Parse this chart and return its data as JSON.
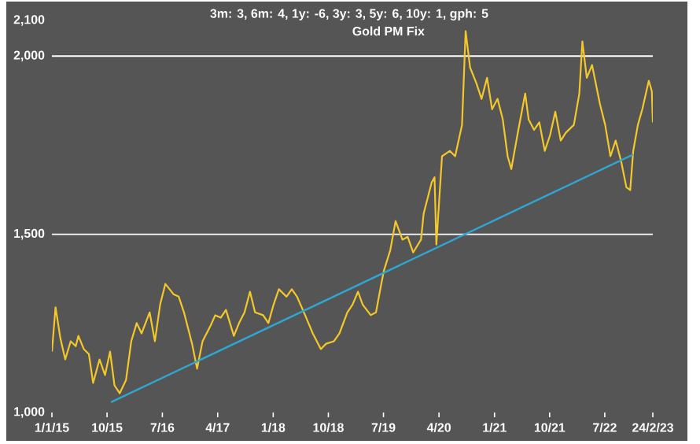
{
  "chart_data": {
    "type": "line",
    "title": "Gold PM Fix",
    "annotations": [
      "3m: 3,   6m: 4,   1y: -6,   3y: 3,   5y: 6,   10y: 1,   gph: 5"
    ],
    "series": [
      {
        "color": "#f5c82a",
        "x": [
          "2015-01-01",
          "2015-01-19",
          "2015-02-12",
          "2015-03-08",
          "2015-04-04",
          "2015-04-29",
          "2015-05-12",
          "2015-06-08",
          "2015-07-03",
          "2015-07-24",
          "2015-08-25",
          "2015-09-21",
          "2015-10-16",
          "2015-11-07",
          "2015-12-03",
          "2016-01-03",
          "2016-01-29",
          "2016-02-25",
          "2016-03-20",
          "2016-04-29",
          "2016-05-25",
          "2016-06-20",
          "2016-07-16",
          "2016-08-25",
          "2016-09-20",
          "2016-10-16",
          "2016-11-25",
          "2016-12-20",
          "2017-01-16",
          "2017-02-25",
          "2017-03-20",
          "2017-04-16",
          "2017-05-12",
          "2017-06-20",
          "2017-07-16",
          "2017-08-12",
          "2017-09-08",
          "2017-10-03",
          "2017-11-12",
          "2017-12-08",
          "2018-01-03",
          "2018-01-29",
          "2018-03-08",
          "2018-04-03",
          "2018-04-29",
          "2018-06-08",
          "2018-07-16",
          "2018-08-25",
          "2018-09-20",
          "2018-10-29",
          "2018-11-25",
          "2019-01-03",
          "2019-01-29",
          "2019-02-25",
          "2019-03-20",
          "2019-04-29",
          "2019-05-25",
          "2019-06-13",
          "2019-07-03",
          "2019-08-04",
          "2019-08-30",
          "2019-10-03",
          "2019-10-29",
          "2019-11-25",
          "2020-01-03",
          "2020-01-16",
          "2020-02-25",
          "2020-03-10",
          "2020-03-19",
          "2020-04-16",
          "2020-05-25",
          "2020-06-20",
          "2020-07-24",
          "2020-08-11",
          "2020-09-02",
          "2020-10-03",
          "2020-10-29",
          "2020-11-25",
          "2020-12-20",
          "2021-01-16",
          "2021-02-11",
          "2021-03-07",
          "2021-03-25",
          "2021-04-29",
          "2021-06-02",
          "2021-06-19",
          "2021-07-16",
          "2021-08-11",
          "2021-09-07",
          "2021-10-03",
          "2021-10-29",
          "2021-11-25",
          "2021-12-20",
          "2022-01-29",
          "2022-02-25",
          "2022-03-12",
          "2022-04-03",
          "2022-04-29",
          "2022-06-07",
          "2022-07-03",
          "2022-07-29",
          "2022-08-24",
          "2022-09-20",
          "2022-10-16",
          "2022-11-04",
          "2022-11-19",
          "2022-12-12",
          "2023-01-03",
          "2023-02-04",
          "2023-02-19",
          "2023-02-24"
        ],
        "values": [
          1171,
          1295,
          1208,
          1149,
          1200,
          1186,
          1215,
          1178,
          1164,
          1083,
          1149,
          1105,
          1171,
          1076,
          1054,
          1091,
          1200,
          1251,
          1222,
          1281,
          1200,
          1303,
          1361,
          1332,
          1325,
          1281,
          1193,
          1123,
          1200,
          1244,
          1273,
          1266,
          1288,
          1215,
          1251,
          1281,
          1339,
          1281,
          1273,
          1251,
          1303,
          1346,
          1325,
          1346,
          1325,
          1273,
          1222,
          1178,
          1193,
          1200,
          1222,
          1281,
          1303,
          1339,
          1303,
          1273,
          1281,
          1339,
          1398,
          1456,
          1537,
          1485,
          1493,
          1449,
          1485,
          1558,
          1646,
          1660,
          1471,
          1719,
          1734,
          1719,
          1807,
          2070,
          1968,
          1924,
          1880,
          1939,
          1851,
          1880,
          1822,
          1719,
          1683,
          1793,
          1895,
          1822,
          1793,
          1814,
          1734,
          1778,
          1844,
          1763,
          1785,
          1807,
          1895,
          2041,
          1939,
          1975,
          1866,
          1807,
          1719,
          1763,
          1705,
          1632,
          1624,
          1734,
          1807,
          1851,
          1931,
          1902,
          1814
        ]
      },
      {
        "color": "#2ea8d2",
        "x": [
          "2015-10-21",
          "2022-11-19"
        ],
        "values": [
          1029,
          1724
        ]
      }
    ],
    "xlim": [
      "2015-01-01",
      "2023-02-24"
    ],
    "xticks": [
      {
        "value": "2015-01-01",
        "label": "1/1/15"
      },
      {
        "value": "2015-10-01",
        "label": "10/15"
      },
      {
        "value": "2016-07-01",
        "label": "7/16"
      },
      {
        "value": "2017-04-01",
        "label": "4/17"
      },
      {
        "value": "2018-01-01",
        "label": "1/18"
      },
      {
        "value": "2018-10-01",
        "label": "10/18"
      },
      {
        "value": "2019-07-01",
        "label": "7/19"
      },
      {
        "value": "2020-04-01",
        "label": "4/20"
      },
      {
        "value": "2021-01-01",
        "label": "1/21"
      },
      {
        "value": "2021-10-01",
        "label": "10/21"
      },
      {
        "value": "2022-07-01",
        "label": "7/22"
      },
      {
        "value": "2023-02-24",
        "label": "24/2/23"
      }
    ],
    "ylim": [
      1000,
      2100
    ],
    "yticks": [
      {
        "value": 1000,
        "label": "1,000"
      },
      {
        "value": 1500,
        "label": "1,500"
      },
      {
        "value": 2000,
        "label": "2,000"
      },
      {
        "value": 2100,
        "label": "2,100"
      }
    ],
    "grid": "y"
  }
}
